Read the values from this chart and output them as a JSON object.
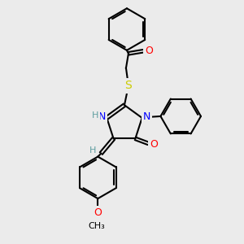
{
  "background_color": "#ebebeb",
  "bond_color": "#000000",
  "atom_colors": {
    "N": "#0000ff",
    "O": "#ff0000",
    "S": "#cccc00",
    "C": "#000000",
    "H": "#5f9ea0"
  },
  "figsize": [
    3.0,
    3.0
  ],
  "dpi": 100
}
